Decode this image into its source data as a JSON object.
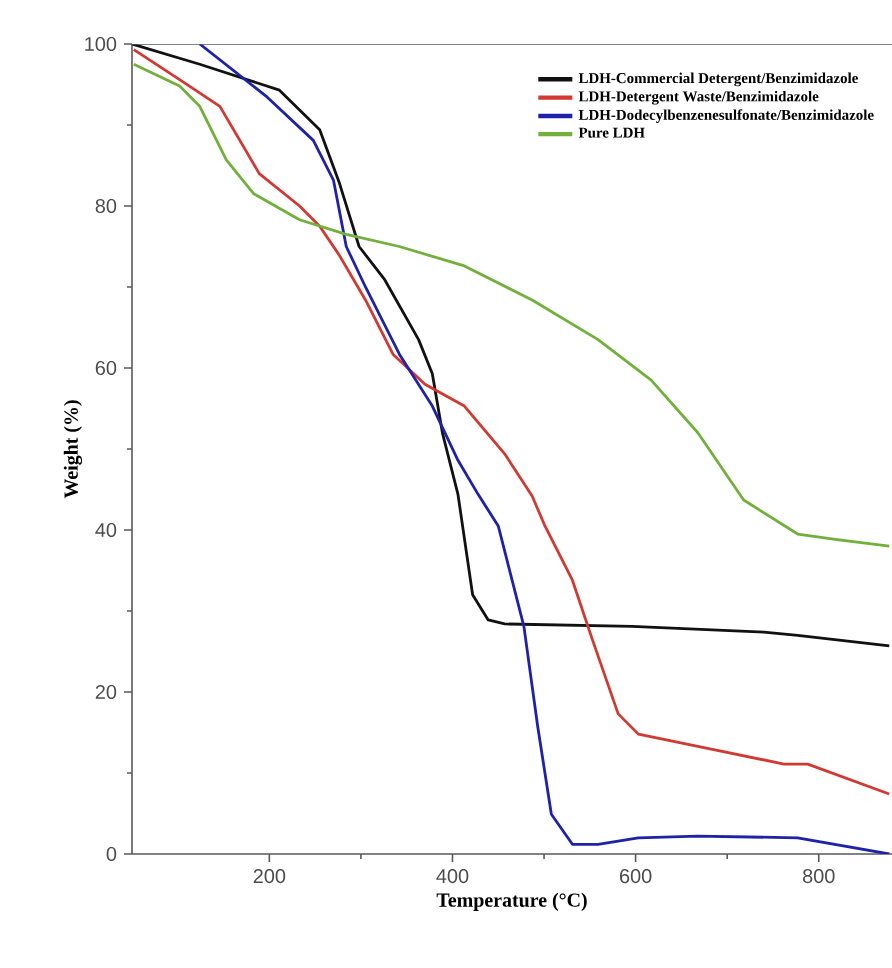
{
  "chart_data": {
    "type": "line",
    "xlabel": "Temperature (°C)",
    "ylabel": "Weight (%)",
    "xlim": [
      50,
      880
    ],
    "ylim": [
      0,
      100
    ],
    "xticks": [
      200,
      400,
      600,
      800
    ],
    "yticks": [
      0,
      20,
      40,
      60,
      80,
      100
    ],
    "grid": false,
    "legend": "top right",
    "marker": "none",
    "line_style": "solid",
    "series": [
      {
        "name": "LDH-Commercial Detergent/Benzimidazole",
        "color": "#111111",
        "x": [
          50,
          124,
          211,
          255,
          276,
          298,
          326,
          363,
          378,
          389,
          406,
          422,
          439,
          457,
          596,
          740,
          777,
          877
        ],
        "values": [
          100,
          97.5,
          94.3,
          89.4,
          83,
          75,
          70.9,
          63.5,
          59.3,
          52,
          44.4,
          32,
          28.9,
          28.4,
          28.1,
          27.4,
          27,
          25.7
        ]
      },
      {
        "name": "LDH-Detergent Waste/Benzimidazole",
        "color": "#d03a32",
        "x": [
          52,
          102,
          146,
          189,
          233,
          255,
          276,
          305,
          335,
          370,
          413,
          457,
          487,
          501,
          531,
          553,
          581,
          603,
          668,
          762,
          788,
          877
        ],
        "values": [
          99.3,
          95.6,
          92.3,
          84,
          80,
          77.5,
          74,
          68.4,
          61.7,
          58,
          55.3,
          49.4,
          44.2,
          40.5,
          33.8,
          26.4,
          17.3,
          14.8,
          13.3,
          11.1,
          11.1,
          7.4
        ]
      },
      {
        "name": "LDH-Dodecylbenzenesulfonate/Benzimidazole",
        "color": "#1e22a8",
        "x": [
          124,
          196,
          248,
          270,
          284,
          305,
          342,
          378,
          406,
          428,
          450,
          478,
          493,
          508,
          531,
          559,
          603,
          668,
          777,
          877
        ],
        "values": [
          100,
          93.6,
          88.1,
          83.2,
          75,
          70,
          61.7,
          55.3,
          48.6,
          44.4,
          40.5,
          28.1,
          15.8,
          4.9,
          1.2,
          1.2,
          2,
          2.2,
          2,
          0
        ]
      },
      {
        "name": "Pure LDH",
        "color": "#72b03c",
        "x": [
          52,
          102,
          124,
          153,
          183,
          233,
          284,
          342,
          413,
          487,
          559,
          617,
          668,
          718,
          777,
          820,
          877
        ],
        "values": [
          97.5,
          94.8,
          92.3,
          85.7,
          81.5,
          78.3,
          76.5,
          75,
          72.6,
          68.4,
          63.5,
          58.5,
          52,
          43.7,
          39.5,
          38.8,
          38
        ]
      }
    ]
  }
}
